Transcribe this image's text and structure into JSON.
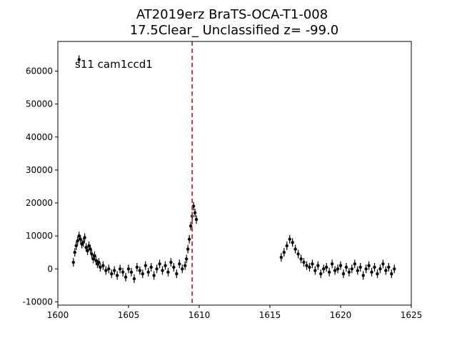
{
  "chart_data": {
    "type": "scatter",
    "title_line1": "AT2019erz  BraTS-OCA-T1-008",
    "title_line2": "17.5Clear_ Unclassified z= -99.0",
    "annotation": "s11 cam1ccd1",
    "xlabel": "",
    "ylabel": "",
    "xlim": [
      1600,
      1625
    ],
    "ylim": [
      -11000,
      69000
    ],
    "xticks": [
      1600,
      1605,
      1610,
      1615,
      1620,
      1625
    ],
    "yticks": [
      -10000,
      0,
      10000,
      20000,
      30000,
      40000,
      50000,
      60000
    ],
    "vline": {
      "x": 1609.5,
      "color": "#d62728",
      "style": "dashed"
    },
    "marker_color": "#000000",
    "series": [
      {
        "points": [
          [
            1601.1,
            2000
          ],
          [
            1601.2,
            5000
          ],
          [
            1601.3,
            7000
          ],
          [
            1601.4,
            8500
          ],
          [
            1601.5,
            10000
          ],
          [
            1601.6,
            9000
          ],
          [
            1601.7,
            7500
          ],
          [
            1601.8,
            8000
          ],
          [
            1601.9,
            9500
          ],
          [
            1602.0,
            6500
          ],
          [
            1602.1,
            5500
          ],
          [
            1602.2,
            7000
          ],
          [
            1602.3,
            6000
          ],
          [
            1602.4,
            4500
          ],
          [
            1602.5,
            3000
          ],
          [
            1602.6,
            4000
          ],
          [
            1602.7,
            2500
          ],
          [
            1602.8,
            1500
          ],
          [
            1602.9,
            2000
          ],
          [
            1603.0,
            500
          ],
          [
            1603.2,
            1000
          ],
          [
            1603.4,
            -500
          ],
          [
            1603.6,
            0
          ],
          [
            1603.8,
            -1500
          ],
          [
            1604.0,
            -500
          ],
          [
            1604.2,
            -2000
          ],
          [
            1604.4,
            0
          ],
          [
            1604.6,
            -1000
          ],
          [
            1604.8,
            -2500
          ],
          [
            1605.0,
            0
          ],
          [
            1605.2,
            -1000
          ],
          [
            1605.4,
            -3000
          ],
          [
            1605.6,
            500
          ],
          [
            1605.8,
            -500
          ],
          [
            1606.0,
            -1500
          ],
          [
            1606.2,
            1000
          ],
          [
            1606.4,
            -1000
          ],
          [
            1606.6,
            500
          ],
          [
            1606.8,
            -2000
          ],
          [
            1607.0,
            0
          ],
          [
            1607.2,
            1500
          ],
          [
            1607.4,
            -500
          ],
          [
            1607.6,
            1000
          ],
          [
            1607.8,
            -1000
          ],
          [
            1608.0,
            2000
          ],
          [
            1608.2,
            500
          ],
          [
            1608.4,
            -1500
          ],
          [
            1608.6,
            1500
          ],
          [
            1608.8,
            0
          ],
          [
            1609.0,
            1000
          ],
          [
            1609.1,
            3000
          ],
          [
            1609.2,
            6000
          ],
          [
            1609.3,
            9000
          ],
          [
            1609.4,
            13000
          ],
          [
            1609.5,
            16000
          ],
          [
            1609.6,
            19000
          ],
          [
            1609.7,
            17000
          ],
          [
            1609.8,
            15000
          ],
          [
            1601.5,
            63500
          ],
          [
            1615.8,
            3500
          ],
          [
            1616.0,
            5000
          ],
          [
            1616.2,
            7000
          ],
          [
            1616.4,
            9000
          ],
          [
            1616.6,
            8000
          ],
          [
            1616.8,
            6000
          ],
          [
            1617.0,
            4500
          ],
          [
            1617.2,
            3000
          ],
          [
            1617.4,
            2000
          ],
          [
            1617.6,
            1000
          ],
          [
            1617.8,
            500
          ],
          [
            1618.0,
            1500
          ],
          [
            1618.2,
            -500
          ],
          [
            1618.4,
            1000
          ],
          [
            1618.6,
            -1500
          ],
          [
            1618.8,
            0
          ],
          [
            1619.0,
            500
          ],
          [
            1619.2,
            -1000
          ],
          [
            1619.4,
            1500
          ],
          [
            1619.6,
            -500
          ],
          [
            1619.8,
            0
          ],
          [
            1620.0,
            1000
          ],
          [
            1620.2,
            -1500
          ],
          [
            1620.4,
            500
          ],
          [
            1620.6,
            -1000
          ],
          [
            1620.8,
            0
          ],
          [
            1621.0,
            1500
          ],
          [
            1621.2,
            -500
          ],
          [
            1621.4,
            500
          ],
          [
            1621.6,
            -2000
          ],
          [
            1621.8,
            0
          ],
          [
            1622.0,
            1000
          ],
          [
            1622.2,
            -1000
          ],
          [
            1622.4,
            500
          ],
          [
            1622.6,
            -1500
          ],
          [
            1622.8,
            0
          ],
          [
            1623.0,
            1500
          ],
          [
            1623.2,
            -500
          ],
          [
            1623.4,
            500
          ],
          [
            1623.6,
            -1500
          ],
          [
            1623.8,
            0
          ]
        ]
      }
    ]
  }
}
